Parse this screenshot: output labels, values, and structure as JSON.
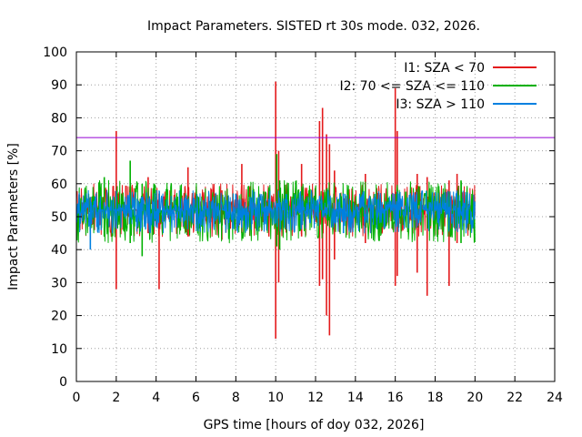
{
  "chart_data": {
    "type": "line",
    "title": "Impact Parameters. SISTED rt 30s mode. 032, 2026.",
    "xlabel": "GPS time [hours of doy 032, 2026]",
    "ylabel": "Impact Parameters [%]",
    "xlim": [
      0,
      24
    ],
    "ylim": [
      0,
      100
    ],
    "xticks": [
      "0",
      "2",
      "4",
      "6",
      "8",
      "10",
      "12",
      "14",
      "16",
      "18",
      "20",
      "22",
      "24"
    ],
    "yticks": [
      "0",
      "10",
      "20",
      "30",
      "40",
      "50",
      "60",
      "70",
      "80",
      "90",
      "100"
    ],
    "grid": true,
    "legend_position": "top-right",
    "threshold": {
      "value": 74,
      "color": "#9400d3"
    },
    "series": [
      {
        "name": "I1: SZA < 70",
        "color": "#e41a1c",
        "baseline": 52,
        "noise_low": 44,
        "noise_high": 60,
        "x_range": [
          0,
          20
        ],
        "spikes": [
          {
            "x": 2.0,
            "high": 76,
            "low": 28
          },
          {
            "x": 4.15,
            "high": 57,
            "low": 28
          },
          {
            "x": 10.0,
            "high": 91,
            "low": 13
          },
          {
            "x": 10.15,
            "high": 70,
            "low": 30
          },
          {
            "x": 12.2,
            "high": 79,
            "low": 29
          },
          {
            "x": 12.35,
            "high": 83,
            "low": 31
          },
          {
            "x": 12.55,
            "high": 75,
            "low": 20
          },
          {
            "x": 12.7,
            "high": 72,
            "low": 14
          },
          {
            "x": 12.95,
            "high": 64,
            "low": 37
          },
          {
            "x": 16.0,
            "high": 89,
            "low": 29
          },
          {
            "x": 16.1,
            "high": 76,
            "low": 32
          },
          {
            "x": 17.1,
            "high": 63,
            "low": 33
          },
          {
            "x": 17.6,
            "high": 62,
            "low": 26
          },
          {
            "x": 18.7,
            "high": 61,
            "low": 29
          },
          {
            "x": 5.6,
            "high": 65,
            "low": 44
          },
          {
            "x": 8.3,
            "high": 66,
            "low": 45
          },
          {
            "x": 11.3,
            "high": 66,
            "low": 44
          },
          {
            "x": 14.5,
            "high": 63,
            "low": 42
          },
          {
            "x": 19.1,
            "high": 63,
            "low": 42
          },
          {
            "x": 7.3,
            "high": 58,
            "low": 43
          },
          {
            "x": 3.6,
            "high": 62,
            "low": 45
          }
        ]
      },
      {
        "name": "I2: 70 <= SZA <= 110",
        "color": "#00b000",
        "baseline": 52,
        "noise_low": 42,
        "noise_high": 61,
        "x_range": [
          0,
          20
        ],
        "spikes": [
          {
            "x": 2.7,
            "high": 67,
            "low": 42
          },
          {
            "x": 3.3,
            "high": 60,
            "low": 38
          },
          {
            "x": 10.05,
            "high": 69,
            "low": 41
          },
          {
            "x": 10.2,
            "high": 61,
            "low": 40
          },
          {
            "x": 1.4,
            "high": 62,
            "low": 44
          },
          {
            "x": 19.3,
            "high": 61,
            "low": 42
          }
        ]
      },
      {
        "name": "I3: SZA > 110",
        "color": "#0080e0",
        "baseline": 52,
        "noise_low": 45,
        "noise_high": 58,
        "x_range": [
          0,
          20
        ],
        "spikes": [
          {
            "x": 0.7,
            "high": 56,
            "low": 40
          },
          {
            "x": 13.4,
            "high": 57,
            "low": 45
          }
        ]
      }
    ]
  }
}
